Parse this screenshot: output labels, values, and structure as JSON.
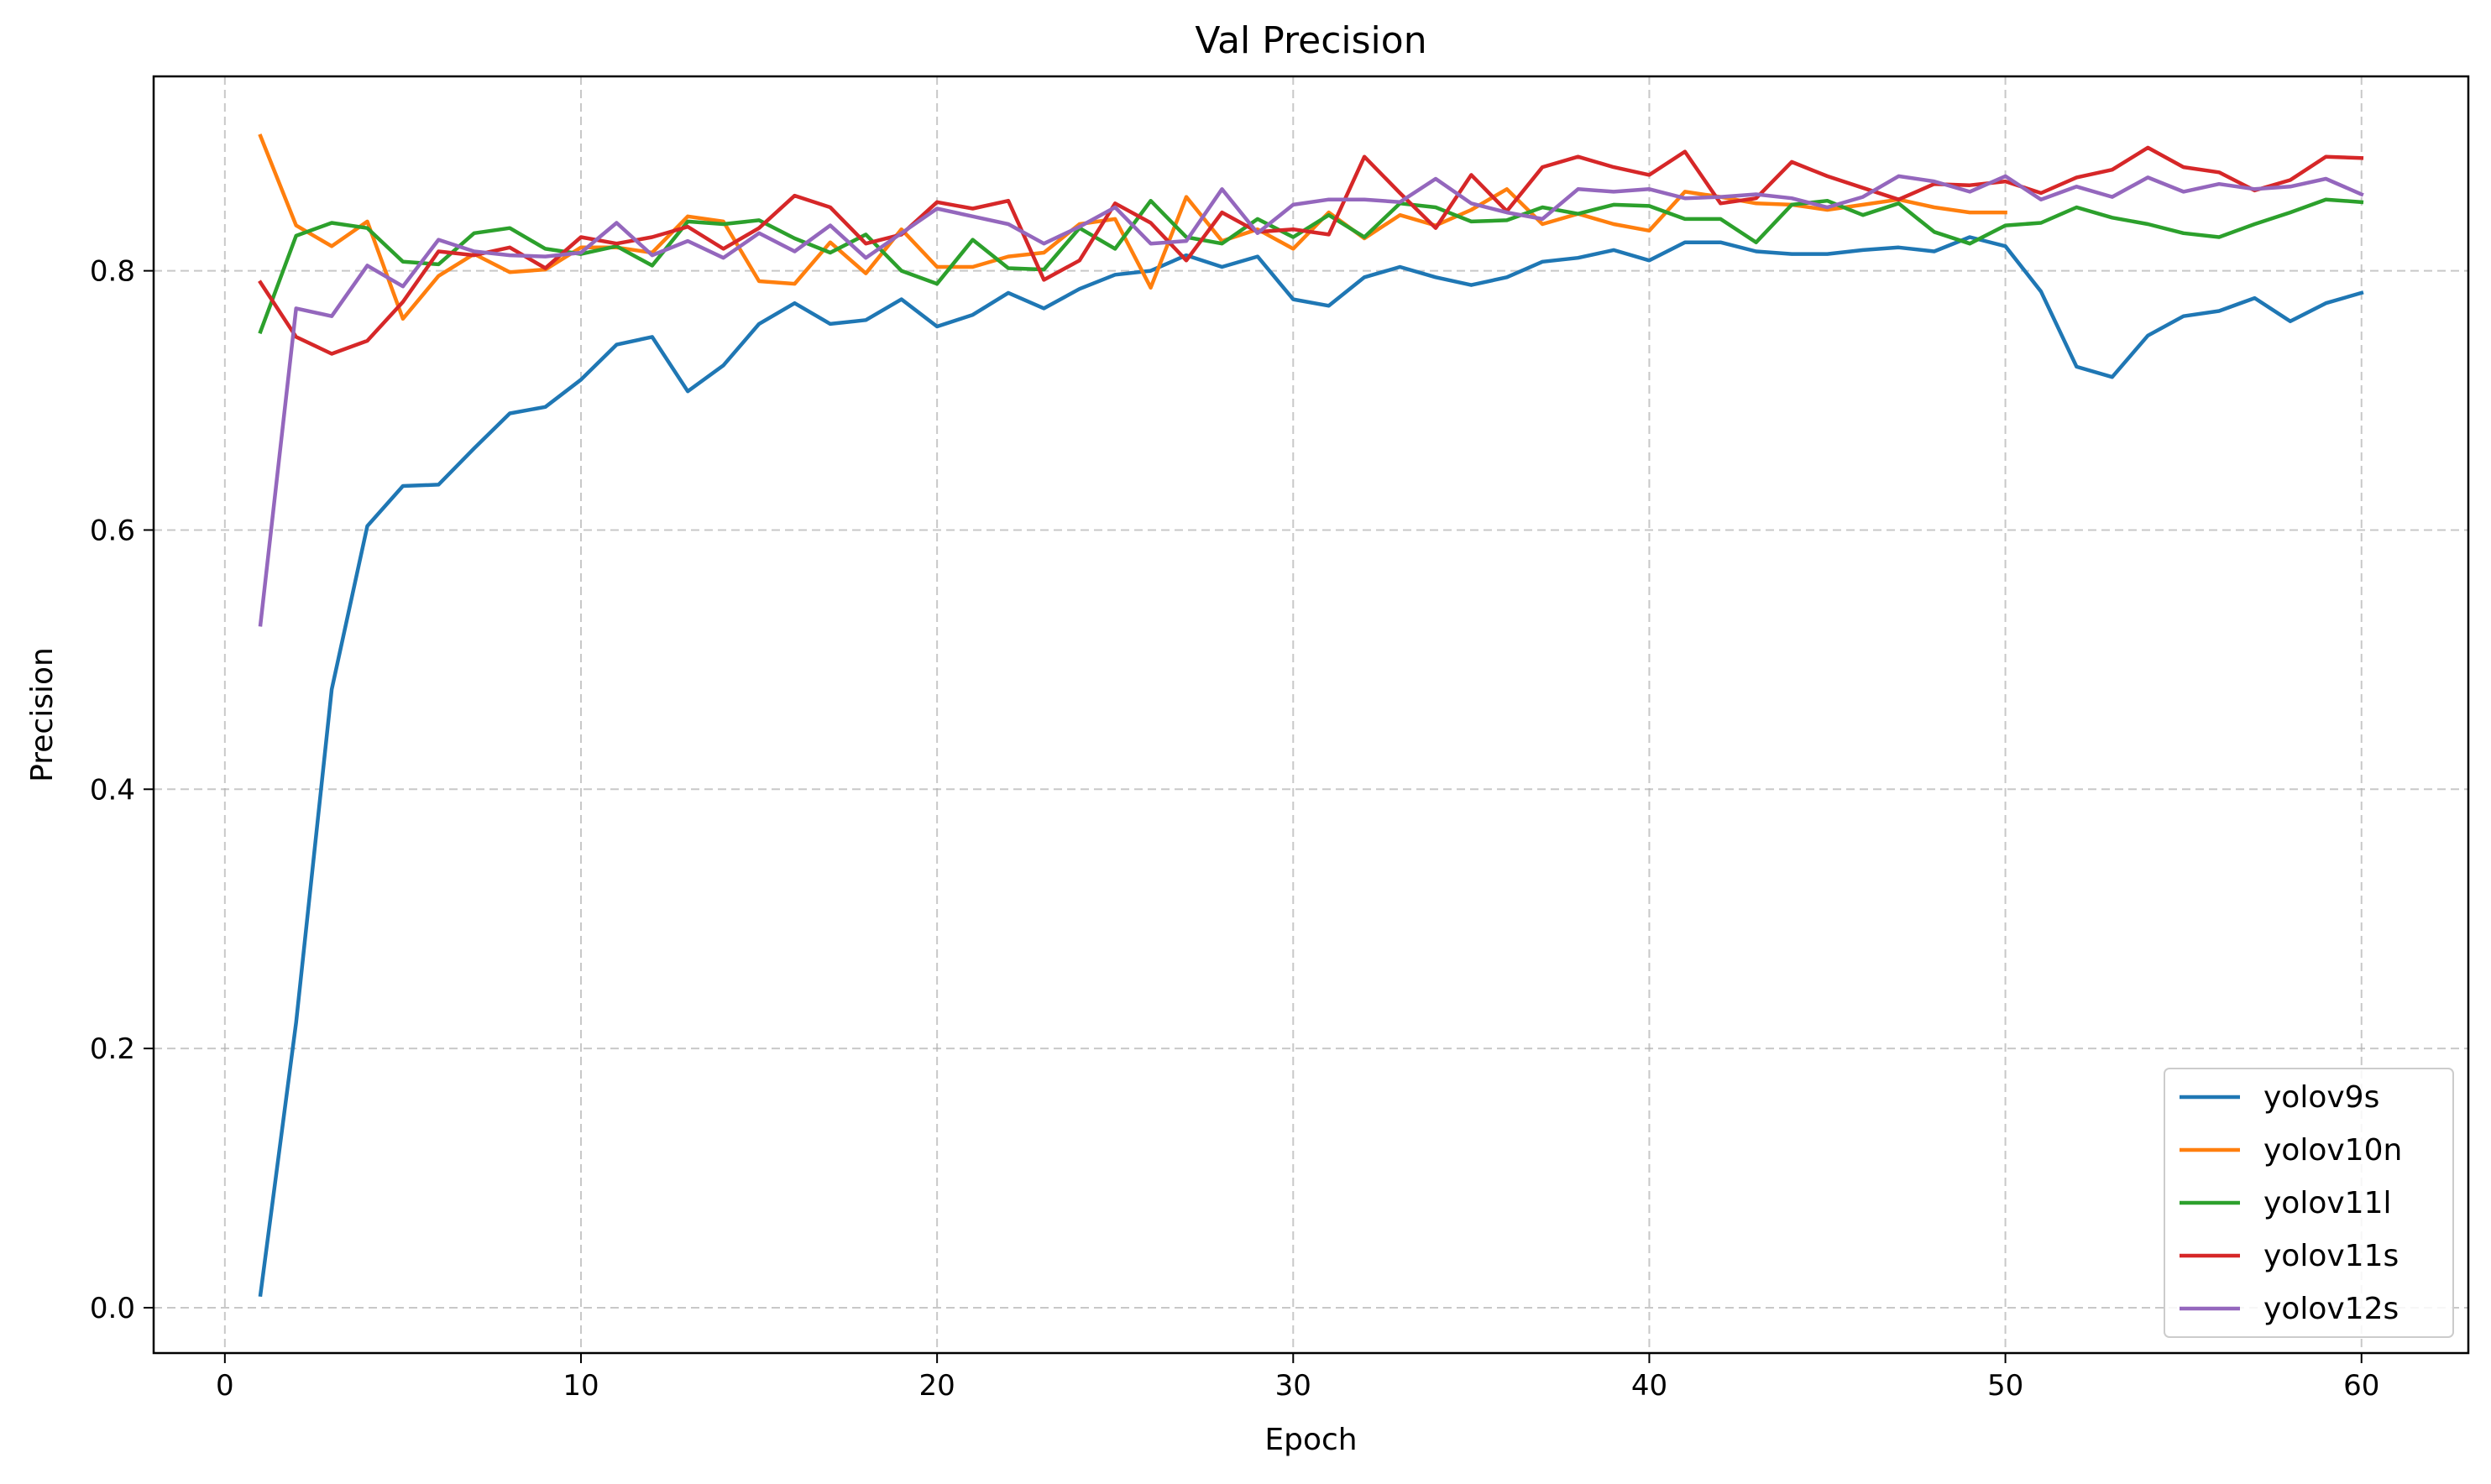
{
  "chart_data": {
    "type": "line",
    "title": "Val Precision",
    "xlabel": "Epoch",
    "ylabel": "Precision",
    "xlim": [
      -2,
      63
    ],
    "ylim": [
      -0.035,
      0.95
    ],
    "xticks": [
      0,
      10,
      20,
      30,
      40,
      50,
      60
    ],
    "yticks": [
      0.0,
      0.2,
      0.4,
      0.6,
      0.8
    ],
    "xtick_labels": [
      "0",
      "10",
      "20",
      "30",
      "40",
      "50",
      "60"
    ],
    "ytick_labels": [
      "0.0",
      "0.2",
      "0.4",
      "0.6",
      "0.8"
    ],
    "grid": true,
    "legend_position": "lower-right",
    "series": [
      {
        "name": "yolov9s",
        "color": "#1f77b4",
        "x_start": 1,
        "values": [
          0.01,
          0.22,
          0.477,
          0.603,
          0.634,
          0.635,
          0.663,
          0.69,
          0.695,
          0.716,
          0.743,
          0.749,
          0.707,
          0.727,
          0.759,
          0.775,
          0.759,
          0.762,
          0.778,
          0.757,
          0.766,
          0.783,
          0.771,
          0.786,
          0.797,
          0.8,
          0.812,
          0.803,
          0.811,
          0.778,
          0.773,
          0.795,
          0.803,
          0.795,
          0.789,
          0.795,
          0.807,
          0.81,
          0.816,
          0.808,
          0.822,
          0.822,
          0.815,
          0.813,
          0.813,
          0.816,
          0.818,
          0.815,
          0.826,
          0.819,
          0.784,
          0.726,
          0.718,
          0.75,
          0.765,
          0.769,
          0.779,
          0.761,
          0.775,
          0.783
        ]
      },
      {
        "name": "yolov10n",
        "color": "#ff7f0e",
        "x_start": 1,
        "values": [
          0.904,
          0.835,
          0.819,
          0.838,
          0.763,
          0.796,
          0.813,
          0.799,
          0.801,
          0.818,
          0.818,
          0.814,
          0.842,
          0.838,
          0.792,
          0.79,
          0.822,
          0.798,
          0.832,
          0.803,
          0.803,
          0.811,
          0.814,
          0.836,
          0.84,
          0.787,
          0.857,
          0.823,
          0.832,
          0.817,
          0.845,
          0.825,
          0.843,
          0.835,
          0.847,
          0.863,
          0.836,
          0.844,
          0.836,
          0.831,
          0.861,
          0.857,
          0.852,
          0.851,
          0.847,
          0.851,
          0.855,
          0.849,
          0.845,
          0.845
        ]
      },
      {
        "name": "yolov11l",
        "color": "#2ca02c",
        "x_start": 1,
        "values": [
          0.753,
          0.827,
          0.837,
          0.833,
          0.807,
          0.805,
          0.829,
          0.833,
          0.817,
          0.813,
          0.819,
          0.804,
          0.838,
          0.836,
          0.839,
          0.825,
          0.814,
          0.828,
          0.8,
          0.79,
          0.824,
          0.802,
          0.801,
          0.833,
          0.817,
          0.854,
          0.826,
          0.821,
          0.84,
          0.826,
          0.843,
          0.826,
          0.852,
          0.849,
          0.838,
          0.839,
          0.849,
          0.844,
          0.851,
          0.85,
          0.84,
          0.84,
          0.822,
          0.851,
          0.854,
          0.843,
          0.852,
          0.83,
          0.821,
          0.835,
          0.837,
          0.849,
          0.841,
          0.836,
          0.829,
          0.826,
          0.836,
          0.845,
          0.855,
          0.853
        ]
      },
      {
        "name": "yolov11s",
        "color": "#d62728",
        "x_start": 1,
        "values": [
          0.791,
          0.749,
          0.736,
          0.746,
          0.776,
          0.815,
          0.812,
          0.818,
          0.802,
          0.826,
          0.821,
          0.826,
          0.834,
          0.817,
          0.833,
          0.858,
          0.849,
          0.821,
          0.828,
          0.853,
          0.848,
          0.854,
          0.793,
          0.808,
          0.852,
          0.837,
          0.808,
          0.845,
          0.83,
          0.832,
          0.828,
          0.888,
          0.86,
          0.833,
          0.874,
          0.846,
          0.88,
          0.888,
          0.88,
          0.874,
          0.892,
          0.852,
          0.856,
          0.884,
          0.873,
          0.864,
          0.855,
          0.867,
          0.866,
          0.869,
          0.86,
          0.872,
          0.878,
          0.895,
          0.88,
          0.876,
          0.862,
          0.87,
          0.888,
          0.887
        ]
      },
      {
        "name": "yolov12s",
        "color": "#9467bd",
        "x_start": 1,
        "values": [
          0.527,
          0.771,
          0.765,
          0.804,
          0.788,
          0.824,
          0.815,
          0.812,
          0.811,
          0.814,
          0.837,
          0.812,
          0.823,
          0.81,
          0.829,
          0.815,
          0.835,
          0.81,
          0.829,
          0.848,
          0.842,
          0.836,
          0.821,
          0.834,
          0.849,
          0.821,
          0.823,
          0.863,
          0.829,
          0.851,
          0.855,
          0.855,
          0.853,
          0.871,
          0.852,
          0.845,
          0.84,
          0.863,
          0.861,
          0.863,
          0.856,
          0.857,
          0.859,
          0.856,
          0.849,
          0.857,
          0.873,
          0.869,
          0.861,
          0.873,
          0.855,
          0.865,
          0.857,
          0.872,
          0.861,
          0.867,
          0.863,
          0.865,
          0.871,
          0.859
        ]
      }
    ]
  }
}
